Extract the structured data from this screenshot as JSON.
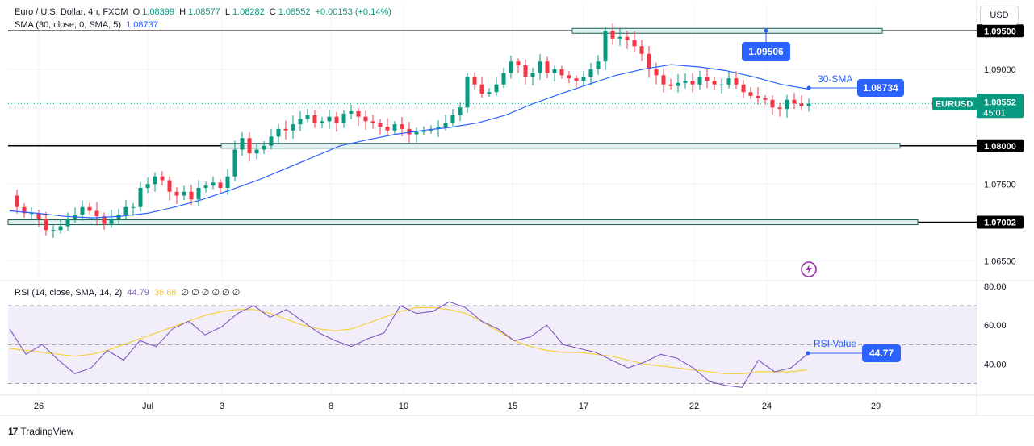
{
  "legend": {
    "symbol": "Euro / U.S. Dollar, 4h, FXCM",
    "open_label": "O",
    "open": "1.08399",
    "high_label": "H",
    "high": "1.08577",
    "low_label": "L",
    "low": "1.08282",
    "close_label": "C",
    "close": "1.08552",
    "change": "+0.00153 (+0.14%)",
    "sma_text": "SMA (30, close, 0, SMA, 5)",
    "sma_value": "1.08737",
    "rsi_text": "RSI (14, close, SMA, 14, 2)",
    "rsi_value": "44.79",
    "rsi_sma_value": "36.68",
    "rsi_extra": "∅ ∅ ∅ ∅ ∅ ∅"
  },
  "currency_button": "USD",
  "footer": {
    "brand": "TradingView"
  },
  "colors": {
    "up": "#089981",
    "down": "#f23645",
    "sma": "#2962ff",
    "rsi": "#7e57c2",
    "rsi_sma": "#f4d03f",
    "zone": "#1b5e50"
  },
  "chart_data": {
    "type": "candlestick",
    "symbol": "EURUSD",
    "timeframe": "4h",
    "price_axis": {
      "ticks": [
        "1.09000",
        "1.08500",
        "1.08000",
        "1.07500",
        "1.07000",
        "1.06500"
      ],
      "range": [
        1.0625,
        1.0985
      ]
    },
    "time_axis": {
      "ticks": [
        "26",
        "Jul",
        "3",
        "8",
        "10",
        "15",
        "17",
        "22",
        "24",
        "29"
      ]
    },
    "last_price": {
      "label": "EURUSD",
      "value": "1.08552",
      "countdown": "45:01"
    },
    "levels": [
      {
        "value": 1.095,
        "label": "1.09500"
      },
      {
        "value": 1.08,
        "label": "1.08000"
      },
      {
        "value": 1.07002,
        "label": "1.07002"
      }
    ],
    "annotations": [
      {
        "text": "1.09506",
        "type": "high-marker"
      },
      {
        "text": "30-SMA",
        "type": "sma-label"
      },
      {
        "text": "1.08734",
        "type": "sma-value"
      },
      {
        "text": "RSI Value",
        "type": "rsi-label"
      },
      {
        "text": "44.77",
        "type": "rsi-value"
      }
    ],
    "close_path": [
      1.0735,
      1.072,
      1.0712,
      1.0712,
      1.0705,
      1.069,
      1.069,
      1.0695,
      1.0705,
      1.071,
      1.072,
      1.0715,
      1.0708,
      1.0698,
      1.0705,
      1.071,
      1.072,
      1.072,
      1.0745,
      1.075,
      1.076,
      1.0755,
      1.074,
      1.0735,
      1.074,
      1.073,
      1.0745,
      1.0748,
      1.0752,
      1.0745,
      1.076,
      1.0795,
      1.081,
      1.079,
      1.0795,
      1.08,
      1.0812,
      1.0822,
      1.082,
      1.0828,
      1.0835,
      1.084,
      1.083,
      1.0832,
      1.0838,
      1.083,
      1.0842,
      1.0845,
      1.0838,
      1.0832,
      1.083,
      1.0825,
      1.082,
      1.0828,
      1.0822,
      1.0815,
      1.0818,
      1.082,
      1.0822,
      1.0825,
      1.083,
      1.084,
      1.085,
      1.089,
      1.088,
      1.0868,
      1.087,
      1.088,
      1.0895,
      1.091,
      1.0905,
      1.089,
      1.0895,
      1.091,
      1.0895,
      1.09,
      1.0892,
      1.0888,
      1.0885,
      1.089,
      1.09,
      1.091,
      1.095,
      1.094,
      1.0942,
      1.0938,
      1.093,
      1.092,
      1.09,
      1.0892,
      1.088,
      1.0878,
      1.0882,
      1.0885,
      1.088,
      1.089,
      1.0885,
      1.088,
      1.088,
      1.0888,
      1.088,
      1.087,
      1.0865,
      1.0862,
      1.086,
      1.085,
      1.0848,
      1.086,
      1.0855,
      1.0852,
      1.0855
    ],
    "sma_path": [
      1.0715,
      1.0712,
      1.0708,
      1.0706,
      1.0708,
      1.0712,
      1.072,
      1.073,
      1.0742,
      1.0755,
      1.077,
      1.0785,
      1.08,
      1.0808,
      1.0815,
      1.082,
      1.0824,
      1.083,
      1.084,
      1.0855,
      1.0868,
      1.088,
      1.0892,
      1.09,
      1.0906,
      1.0903,
      1.0898,
      1.089,
      1.088,
      1.0874
    ],
    "rsi_axis": {
      "ticks": [
        "80.00",
        "60.00",
        "40.00"
      ],
      "range": [
        24,
        82
      ],
      "bands": [
        70,
        50,
        30
      ]
    },
    "rsi_path": [
      58,
      45,
      50,
      42,
      35,
      38,
      47,
      42,
      52,
      49,
      58,
      62,
      55,
      59,
      66,
      70,
      64,
      68,
      62,
      56,
      52,
      49,
      53,
      56,
      70,
      66,
      67,
      72,
      69,
      62,
      58,
      52,
      54,
      60,
      50,
      48,
      46,
      42,
      38,
      41,
      45,
      43,
      38,
      31,
      29,
      28,
      42,
      36,
      38,
      45
    ],
    "rsi_sma_path": [
      48,
      47,
      46,
      45,
      44,
      45,
      47,
      50,
      53,
      56,
      59,
      62,
      65,
      67,
      68,
      68,
      66,
      63,
      60,
      58,
      57,
      58,
      61,
      64,
      67,
      69,
      69,
      68,
      66,
      62,
      57,
      52,
      49,
      47,
      46,
      46,
      45,
      44,
      42,
      40,
      39,
      38,
      37,
      36,
      35,
      35,
      36,
      36,
      36,
      37
    ]
  }
}
